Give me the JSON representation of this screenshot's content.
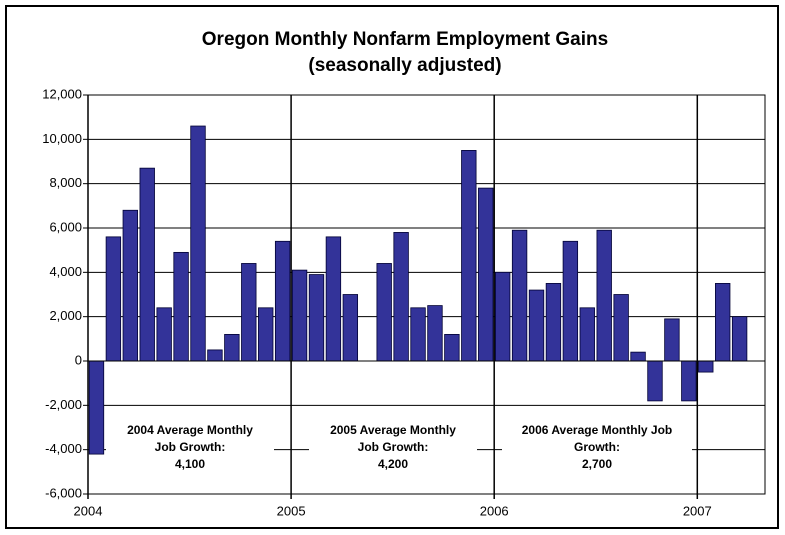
{
  "chart_data": {
    "type": "bar",
    "title": "Oregon Monthly Nonfarm Employment Gains",
    "subtitle": "(seasonally adjusted)",
    "categories": [
      "2004",
      null,
      null,
      null,
      null,
      null,
      null,
      null,
      null,
      null,
      null,
      null,
      "2005",
      null,
      null,
      null,
      null,
      null,
      null,
      null,
      null,
      null,
      null,
      null,
      "2006",
      null,
      null,
      null,
      null,
      null,
      null,
      null,
      null,
      null,
      null,
      null,
      "2007",
      null,
      null
    ],
    "values": [
      -4200,
      5600,
      6800,
      8700,
      2400,
      4900,
      10600,
      500,
      1200,
      4400,
      2400,
      5400,
      4100,
      3900,
      5600,
      3000,
      0,
      4400,
      5800,
      2400,
      2500,
      1200,
      9500,
      7800,
      4000,
      5900,
      3200,
      3500,
      5400,
      2400,
      5900,
      3000,
      400,
      -1800,
      1900,
      -1800,
      -500,
      3500,
      2000
    ],
    "color": "#333399",
    "ylim": [
      -6000,
      12000
    ],
    "yticks": [
      {
        "value": -6000,
        "label": "-6,000"
      },
      {
        "value": -4000,
        "label": "-4,000"
      },
      {
        "value": -2000,
        "label": "-2,000"
      },
      0,
      {
        "value": 2000,
        "label": "2,000"
      },
      {
        "value": 4000,
        "label": "4,000"
      },
      {
        "value": 6000,
        "label": "6,000"
      },
      {
        "value": 8000,
        "label": "8,000"
      },
      {
        "value": 10000,
        "label": "10,000"
      },
      {
        "value": 12000,
        "label": "12,000"
      }
    ],
    "grid": true,
    "annotations": [
      [
        "2004 Average Monthly",
        "Job Growth:",
        "4,100"
      ],
      [
        "2005 Average Monthly",
        "Job Growth:",
        "4,200"
      ],
      [
        "2006 Average Monthly Job",
        "Growth:",
        "2,700"
      ]
    ]
  }
}
